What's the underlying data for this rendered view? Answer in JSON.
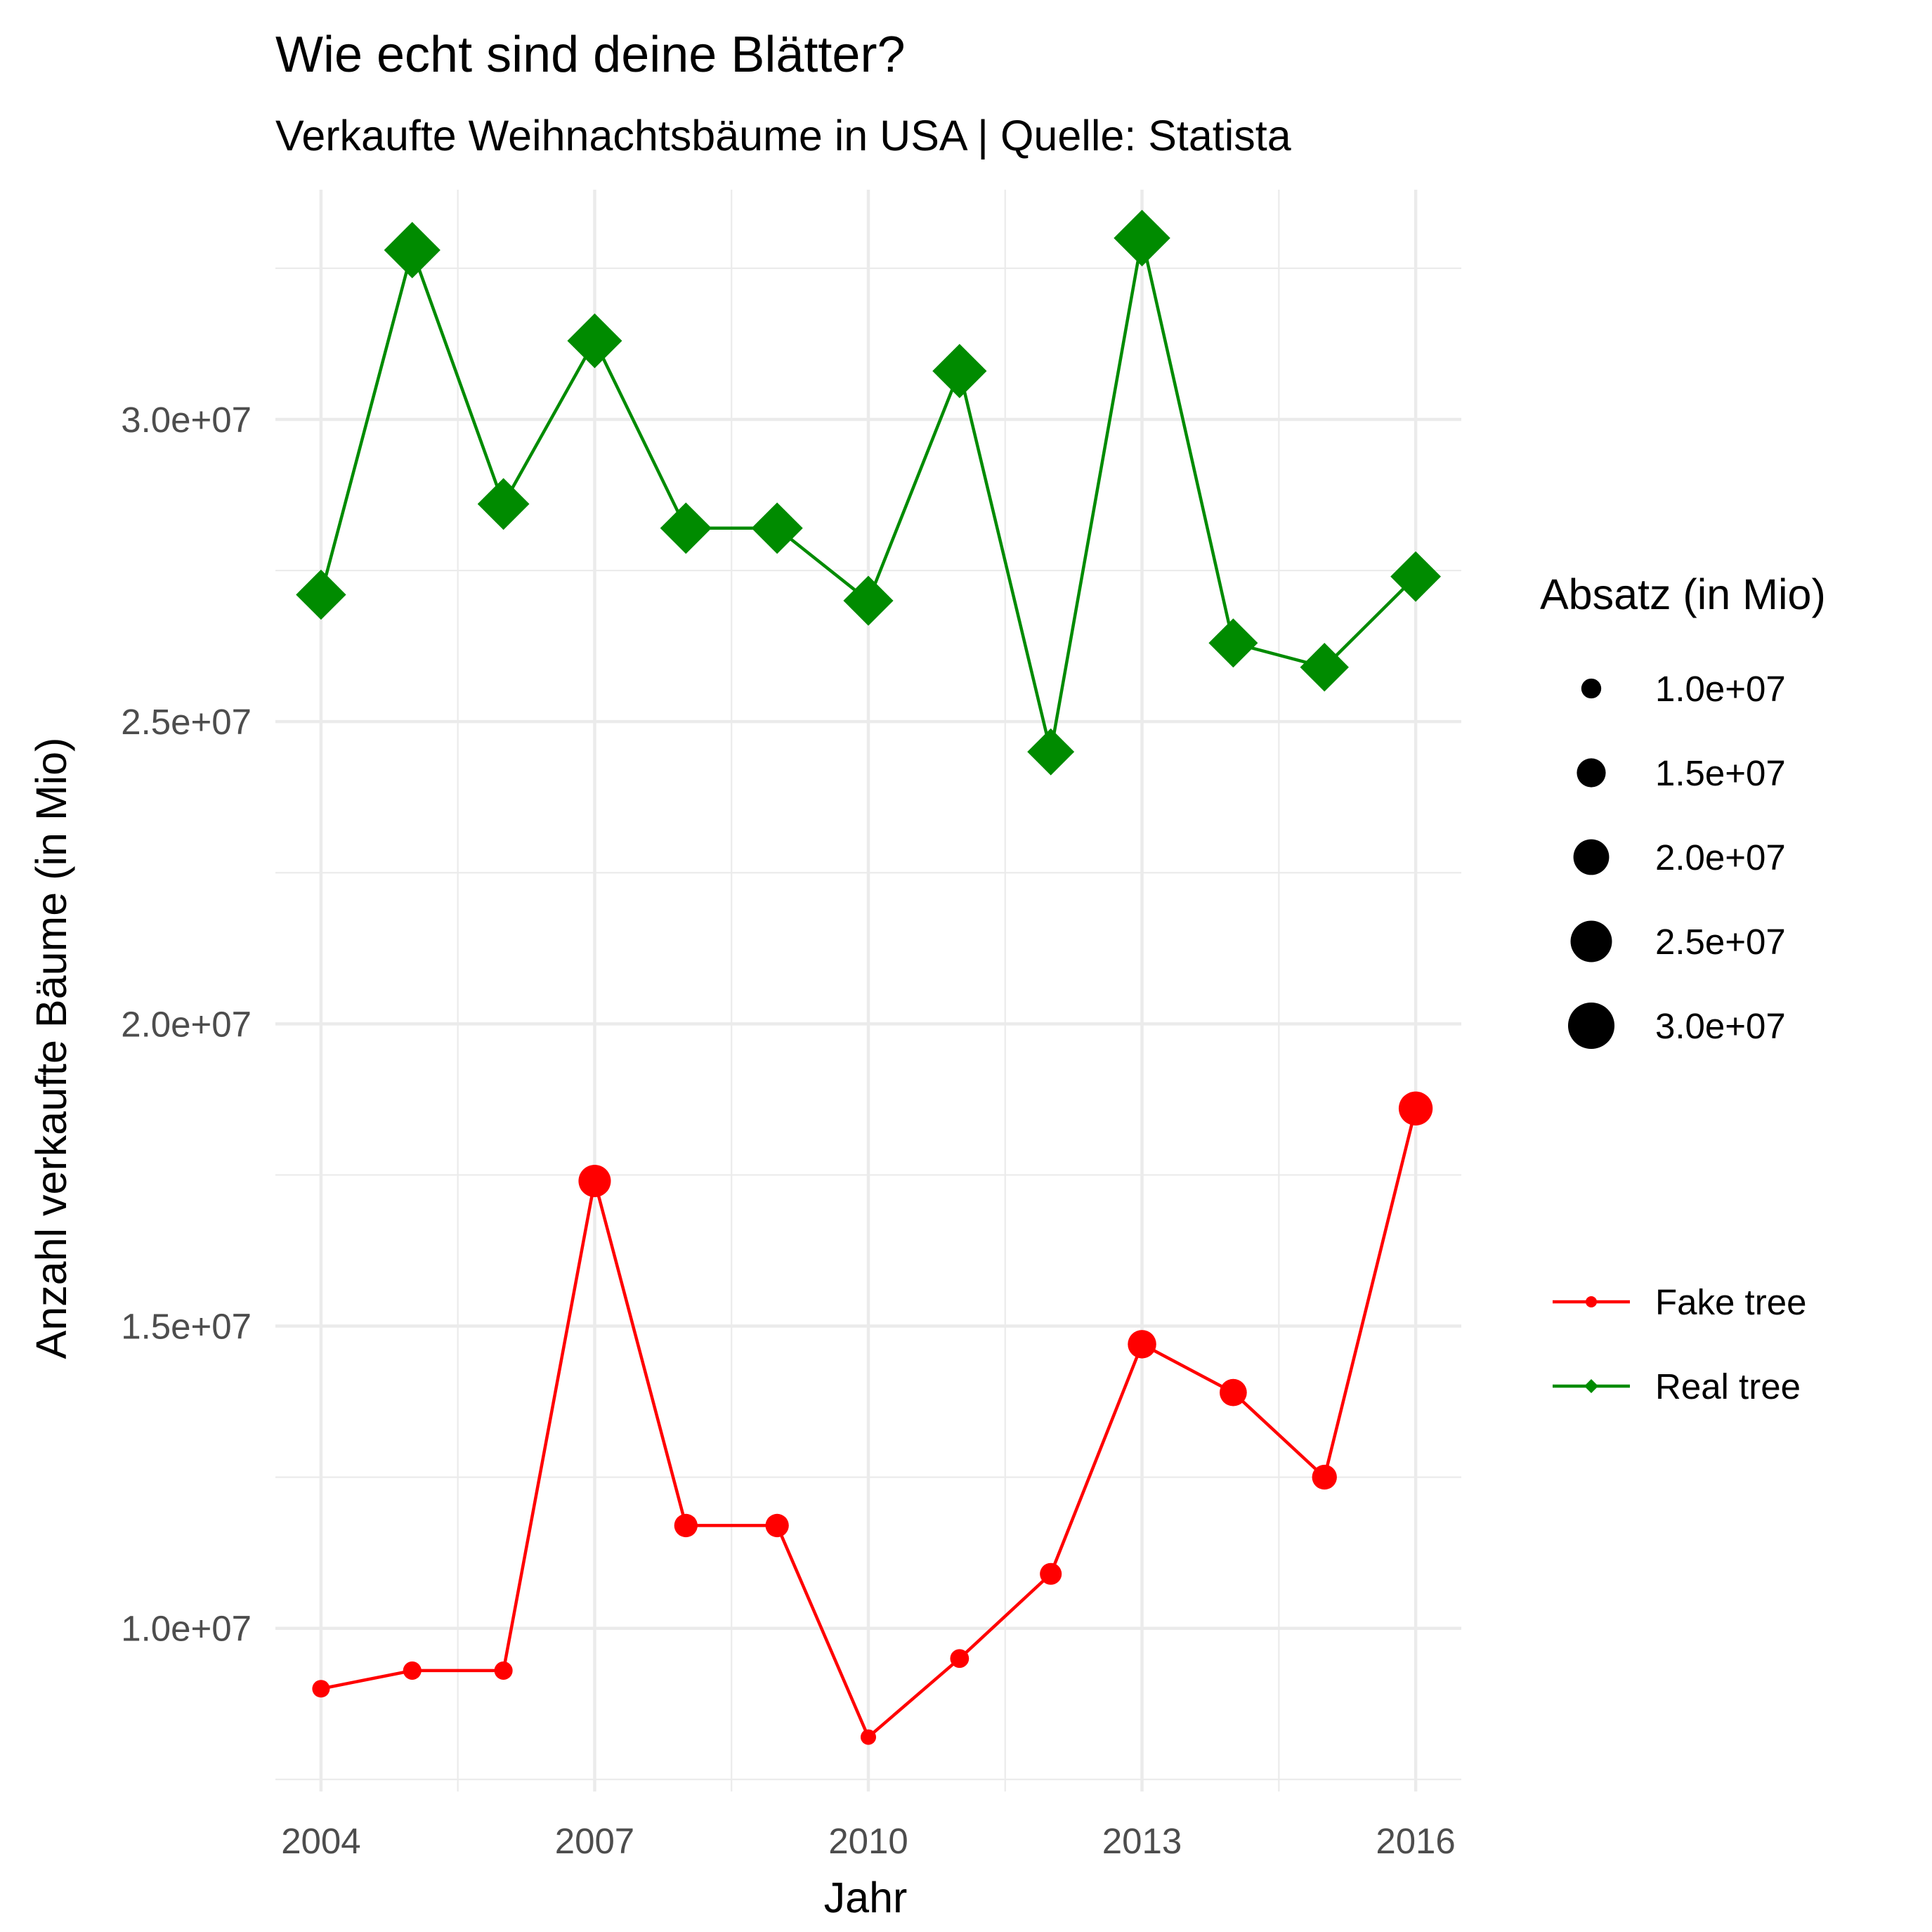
{
  "chart_data": {
    "type": "line",
    "title": "Wie echt sind deine Blätter?",
    "subtitle": "Verkaufte Weihnachtsbäume in USA | Quelle: Statista",
    "xlabel": "Jahr",
    "ylabel": "Anzahl verkaufte Bäume (in Mio)",
    "x": [
      2004,
      2005,
      2006,
      2007,
      2008,
      2009,
      2010,
      2011,
      2012,
      2013,
      2014,
      2015,
      2016
    ],
    "xticks": [
      "2004",
      "2007",
      "2010",
      "2013",
      "2016"
    ],
    "yticks": [
      "1.0e+07",
      "1.5e+07",
      "2.0e+07",
      "2.5e+07",
      "3.0e+07"
    ],
    "xlim": [
      2003.5,
      2016.5
    ],
    "ylim": [
      7300000,
      33800000
    ],
    "grid": true,
    "series": [
      {
        "name": "Fake tree",
        "color": "#ff0000",
        "marker": "circle",
        "values": [
          9000000,
          9300000,
          9300000,
          17400000,
          11700000,
          11700000,
          8200000,
          9500000,
          10900000,
          14700000,
          13900000,
          12500000,
          18600000
        ]
      },
      {
        "name": "Real tree",
        "color": "#008b00",
        "marker": "diamond",
        "values": [
          27100000,
          32800000,
          28600000,
          31300000,
          28200000,
          28200000,
          27000000,
          30800000,
          24500000,
          33000000,
          26300000,
          25900000,
          27400000
        ]
      }
    ],
    "size_legend": {
      "title": "Absatz (in Mio)",
      "labels": [
        "1.0e+07",
        "1.5e+07",
        "2.0e+07",
        "2.5e+07",
        "3.0e+07"
      ],
      "values": [
        10000000,
        15000000,
        20000000,
        25000000,
        30000000
      ]
    },
    "legend_position": "right"
  }
}
